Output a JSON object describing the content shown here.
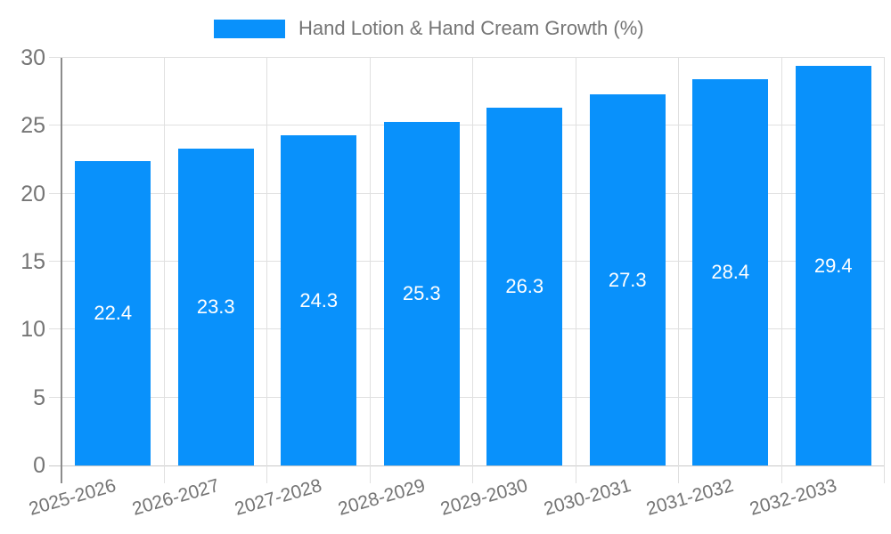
{
  "legend": {
    "position": "top-center",
    "swatch_icon": "legend-color-swatch"
  },
  "style": {
    "background_color": "#ffffff",
    "bar_color": "#0991fb",
    "value_label_color": "#ffffff",
    "axis_text_color": "#757575",
    "gridline_color": "#e0e0e0",
    "baseline_color": "#c9c9c9",
    "axis_line_color": "#8c8c8c"
  },
  "chart_data": {
    "type": "bar",
    "title": "Hand Lotion & Hand Cream Growth (%)",
    "xlabel": "",
    "ylabel": "",
    "categories": [
      "2025-2026",
      "2026-2027",
      "2027-2028",
      "2028-2029",
      "2029-2030",
      "2030-2031",
      "2031-2032",
      "2032-2033"
    ],
    "values": [
      22.4,
      23.3,
      24.3,
      25.3,
      26.3,
      27.3,
      28.4,
      29.4
    ],
    "value_labels": [
      "22.4",
      "23.3",
      "24.3",
      "25.3",
      "26.3",
      "27.3",
      "28.4",
      "29.4"
    ],
    "ylim": [
      0,
      30
    ],
    "yticks": [
      0,
      5,
      10,
      15,
      20,
      25,
      30
    ],
    "grid": true,
    "grid_vertical": true,
    "legend_position": "top",
    "value_label_placement": "inside-center",
    "x_label_rotation_deg": -16
  }
}
